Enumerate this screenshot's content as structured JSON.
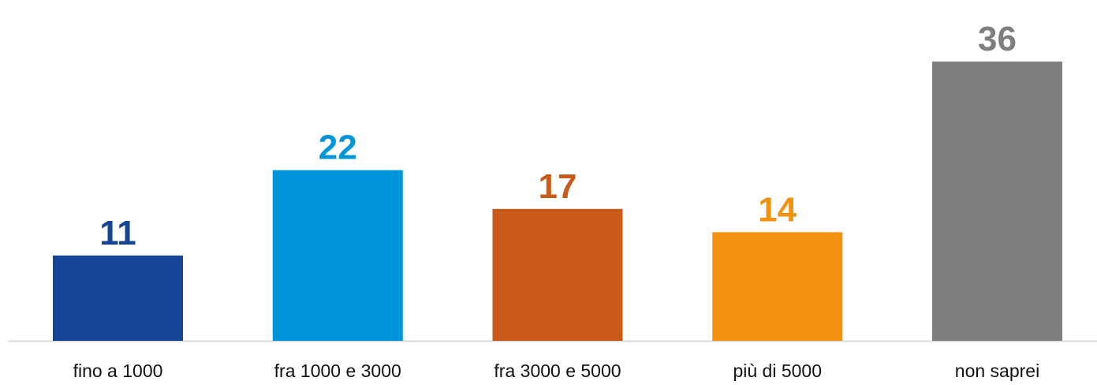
{
  "chart_data": {
    "type": "bar",
    "categories": [
      "fino a 1000",
      "fra 1000 e 3000",
      "fra 3000 e 5000",
      "più di 5000",
      "non saprei"
    ],
    "values": [
      11,
      22,
      17,
      14,
      36
    ],
    "colors": [
      "#154594",
      "#0395d9",
      "#c95a1a",
      "#f39211",
      "#7f7f7f"
    ],
    "grid": false
  }
}
